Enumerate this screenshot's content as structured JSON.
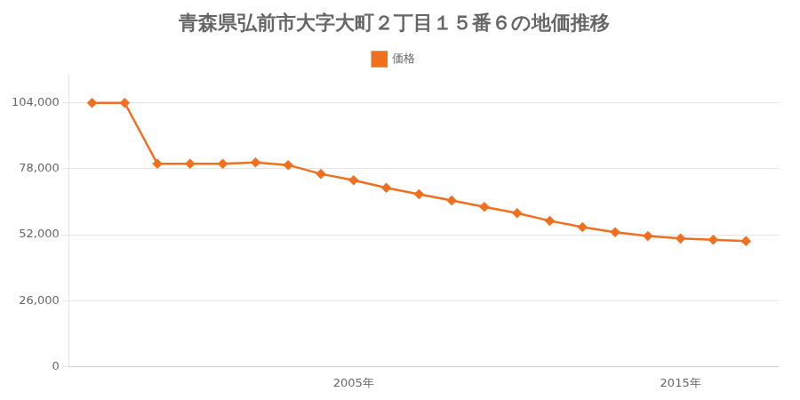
{
  "chart_data": {
    "type": "line",
    "title": "青森県弘前市大字大町２丁目１５番６の地価推移",
    "x": [
      1997,
      1998,
      1999,
      2000,
      2001,
      2002,
      2003,
      2004,
      2005,
      2006,
      2007,
      2008,
      2009,
      2010,
      2011,
      2012,
      2013,
      2014,
      2015,
      2016,
      2017
    ],
    "series": [
      {
        "name": "価格",
        "color": "#f07020",
        "marker": "diamond",
        "values": [
          104000,
          104000,
          80000,
          80000,
          80000,
          80500,
          79500,
          76000,
          73500,
          70500,
          68000,
          65500,
          63000,
          60500,
          57500,
          55000,
          53000,
          51500,
          50500,
          50000,
          49500
        ]
      }
    ],
    "xlim": [
      1996.3,
      2018.0
    ],
    "xticks": [
      {
        "value": 2005,
        "label": "2005年"
      },
      {
        "value": 2015,
        "label": "2015年"
      }
    ],
    "ylim": [
      0,
      115000
    ],
    "yticks": [
      0,
      {
        "value": 26000,
        "label": "26,000"
      },
      {
        "value": 52000,
        "label": "52,000"
      },
      {
        "value": 78000,
        "label": "78,000"
      },
      {
        "value": 104000,
        "label": "104,000"
      }
    ],
    "grid": "y",
    "legend": "top"
  }
}
